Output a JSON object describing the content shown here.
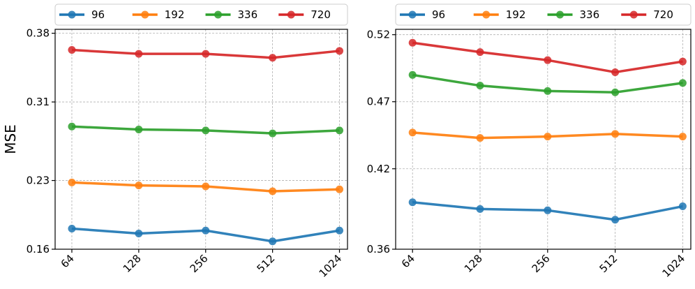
{
  "chart_data": [
    {
      "type": "line",
      "title": "",
      "xlabel": "",
      "ylabel": "MSE",
      "x_scale": "log2",
      "x": [
        64,
        128,
        256,
        512,
        1024
      ],
      "x_tick_labels": [
        "64",
        "128",
        "256",
        "512",
        "1024"
      ],
      "yticks": [
        0.16,
        0.23,
        0.31,
        0.38
      ],
      "y_tick_labels": [
        "0.16",
        "0.23",
        "0.31",
        "0.38"
      ],
      "ylim": [
        0.16,
        0.384
      ],
      "grid": true,
      "legend_position": "top",
      "series": [
        {
          "name": "96",
          "color": "#1f77b4",
          "values": [
            0.181,
            0.176,
            0.179,
            0.168,
            0.179
          ]
        },
        {
          "name": "192",
          "color": "#ff7f0e",
          "values": [
            0.228,
            0.225,
            0.224,
            0.219,
            0.221
          ]
        },
        {
          "name": "336",
          "color": "#2ca02c",
          "values": [
            0.285,
            0.282,
            0.281,
            0.278,
            0.281
          ]
        },
        {
          "name": "720",
          "color": "#d62728",
          "values": [
            0.363,
            0.359,
            0.359,
            0.355,
            0.362
          ]
        }
      ]
    },
    {
      "type": "line",
      "title": "",
      "xlabel": "",
      "ylabel": "",
      "x_scale": "log2",
      "x": [
        64,
        128,
        256,
        512,
        1024
      ],
      "x_tick_labels": [
        "64",
        "128",
        "256",
        "512",
        "1024"
      ],
      "yticks": [
        0.36,
        0.42,
        0.47,
        0.52
      ],
      "y_tick_labels": [
        "0.36",
        "0.42",
        "0.47",
        "0.52"
      ],
      "ylim": [
        0.36,
        0.524
      ],
      "grid": true,
      "legend_position": "top",
      "series": [
        {
          "name": "96",
          "color": "#1f77b4",
          "values": [
            0.395,
            0.39,
            0.389,
            0.382,
            0.392
          ]
        },
        {
          "name": "192",
          "color": "#ff7f0e",
          "values": [
            0.447,
            0.443,
            0.444,
            0.446,
            0.444
          ]
        },
        {
          "name": "336",
          "color": "#2ca02c",
          "values": [
            0.49,
            0.482,
            0.478,
            0.477,
            0.484
          ]
        },
        {
          "name": "720",
          "color": "#d62728",
          "values": [
            0.514,
            0.507,
            0.501,
            0.492,
            0.5
          ]
        }
      ]
    }
  ]
}
